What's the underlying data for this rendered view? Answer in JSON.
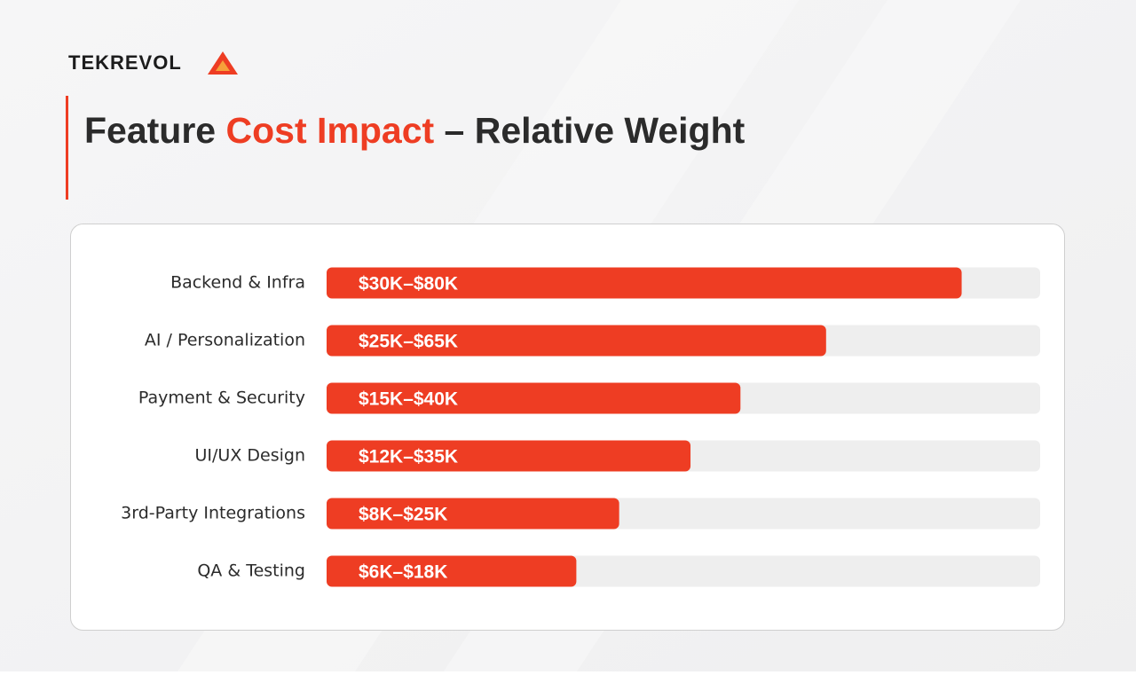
{
  "brand": "TEKREVOL",
  "chart_data": {
    "type": "bar",
    "orientation": "horizontal",
    "title_parts": [
      "Feature ",
      "Cost Impact",
      " – Relative Weight"
    ],
    "title_highlight": 1,
    "categories": [
      "Backend & Infra",
      "AI / Personalization",
      "Payment & Security",
      "UI/UX Design",
      "3rd-Party Integrations",
      "QA & Testing"
    ],
    "values": [
      89,
      70,
      58,
      51,
      41,
      35
    ],
    "ranges": [
      "$30K–$80K",
      "$25K–$65K",
      "$15K–$40K",
      "$12K–$35K",
      "$8K–$25K",
      "$6K–$18K"
    ],
    "xlim": [
      0,
      100
    ],
    "color": "#ee3d23",
    "track_color": "#eeeeee",
    "text_color": "#2b2b2b"
  }
}
